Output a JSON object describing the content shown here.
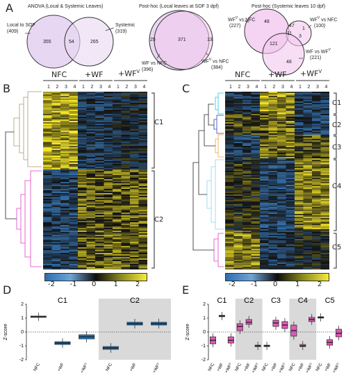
{
  "panels": {
    "a": "A",
    "b": "B",
    "c": "C",
    "d": "D",
    "e": "E"
  },
  "venn1": {
    "title": "ANOVA (Local & Systemic Leaves)",
    "left_label": "Local to SOF",
    "left_count": "(409)",
    "right_label": "Systemic",
    "right_count": "(319)",
    "left_only": "355",
    "overlap": "54",
    "right_only": "265"
  },
  "venn2": {
    "title": "Post-hoc (Local leaves at SOF 3 dpf)",
    "left_label": "WF vs NFC",
    "left_count": "(396)",
    "right_label": "WF",
    "right_sup": "V",
    "right_label2": " vs NFC",
    "right_count": "(384)",
    "left_only": "25",
    "overlap": "371",
    "right_only": "13"
  },
  "venn3": {
    "title": "Post-hoc (Systemic leaves 10 dpf)",
    "a_label": "WF",
    "a_sup": "V",
    "a_label2": " vs NFC",
    "a_count": "(227)",
    "b_label": "WF",
    "b_sup": "V",
    "b_label2": " vs NFC",
    "b_count": "(100)",
    "c_label": "WF vs WF",
    "c_sup": "V",
    "c_count": "(221)",
    "n48a": "48",
    "n47": "47",
    "n1": "1",
    "n3": "3",
    "n11": "11",
    "n121": "121",
    "n48b": "48"
  },
  "heatmap_b": {
    "groups": [
      "NFC",
      "+WF",
      "+WF"
    ],
    "group_sup": [
      "",
      "",
      "V"
    ],
    "cols": [
      "1",
      "2",
      "3",
      "4",
      "1",
      "2",
      "3",
      "4",
      "1",
      "2",
      "3",
      "4"
    ],
    "clusters": [
      "C1",
      "C2"
    ]
  },
  "heatmap_c": {
    "groups": [
      "NFC",
      "+WF",
      "+WF"
    ],
    "group_sup": [
      "",
      "",
      "V"
    ],
    "cols": [
      "1",
      "2",
      "3",
      "4",
      "1",
      "2",
      "3",
      "4",
      "1",
      "2",
      "3",
      "4"
    ],
    "clusters": [
      "C1",
      "C2",
      "C3",
      "C4",
      "C5"
    ]
  },
  "colorbar_ticks": [
    "-2",
    "-1",
    "0",
    "1",
    "2"
  ],
  "chart_data": [
    {
      "type": "box",
      "ylabel": "Z-score",
      "ylim": [
        -2,
        2
      ],
      "yticks": [
        "2",
        "1",
        "0",
        "-1",
        "-2"
      ],
      "clusters": [
        "C1",
        "C2"
      ],
      "categories": [
        "NFC",
        "+WF",
        "+WF"
      ],
      "category_sup": [
        "",
        "",
        "V"
      ],
      "series": [
        {
          "name": "C1",
          "medians": [
            1.1,
            -0.8,
            -0.35
          ],
          "q1": [
            1.05,
            -0.9,
            -0.5
          ],
          "q3": [
            1.15,
            -0.7,
            -0.2
          ]
        },
        {
          "name": "C2",
          "medians": [
            -1.15,
            0.6,
            0.6
          ],
          "q1": [
            -1.25,
            0.5,
            0.5
          ],
          "q3": [
            -1.05,
            0.7,
            0.7
          ]
        }
      ],
      "colors": {
        "C1": [
          "#ffffff",
          "#2b7bb9",
          "#2b7bb9"
        ],
        "C2": [
          "#2b7bb9",
          "#2b7bb9",
          "#2b7bb9"
        ]
      }
    },
    {
      "type": "box",
      "ylabel": "Z-score",
      "ylim": [
        -2,
        2
      ],
      "yticks": [
        "2",
        "1",
        "0",
        "-1",
        "-2"
      ],
      "clusters": [
        "C1",
        "C2",
        "C3",
        "C4",
        "C5"
      ],
      "categories": [
        "NFC",
        "+WF",
        "+WF"
      ],
      "category_sup": [
        "",
        "",
        "V"
      ],
      "series": [
        {
          "name": "C1",
          "medians": [
            -0.6,
            1.15,
            -0.6
          ],
          "q1": [
            -0.85,
            1.1,
            -0.8
          ],
          "q3": [
            -0.35,
            1.2,
            -0.35
          ]
        },
        {
          "name": "C2",
          "medians": [
            0.4,
            0.7,
            -1.0
          ],
          "q1": [
            0.1,
            0.55,
            -1.05
          ],
          "q3": [
            0.6,
            0.9,
            -0.95
          ]
        },
        {
          "name": "C3",
          "medians": [
            -1.0,
            0.65,
            0.5
          ],
          "q1": [
            -1.05,
            0.4,
            0.25
          ],
          "q3": [
            -0.95,
            0.85,
            0.75
          ]
        },
        {
          "name": "C4",
          "medians": [
            0.1,
            -1.0,
            0.9
          ],
          "q1": [
            -0.3,
            -1.05,
            0.75
          ],
          "q3": [
            0.5,
            -0.9,
            1.05
          ]
        },
        {
          "name": "C5",
          "medians": [
            1.05,
            -0.75,
            -0.1
          ],
          "q1": [
            1.0,
            -0.95,
            -0.35
          ],
          "q3": [
            1.1,
            -0.55,
            0.2
          ]
        }
      ],
      "color": "#e05ab8"
    }
  ]
}
